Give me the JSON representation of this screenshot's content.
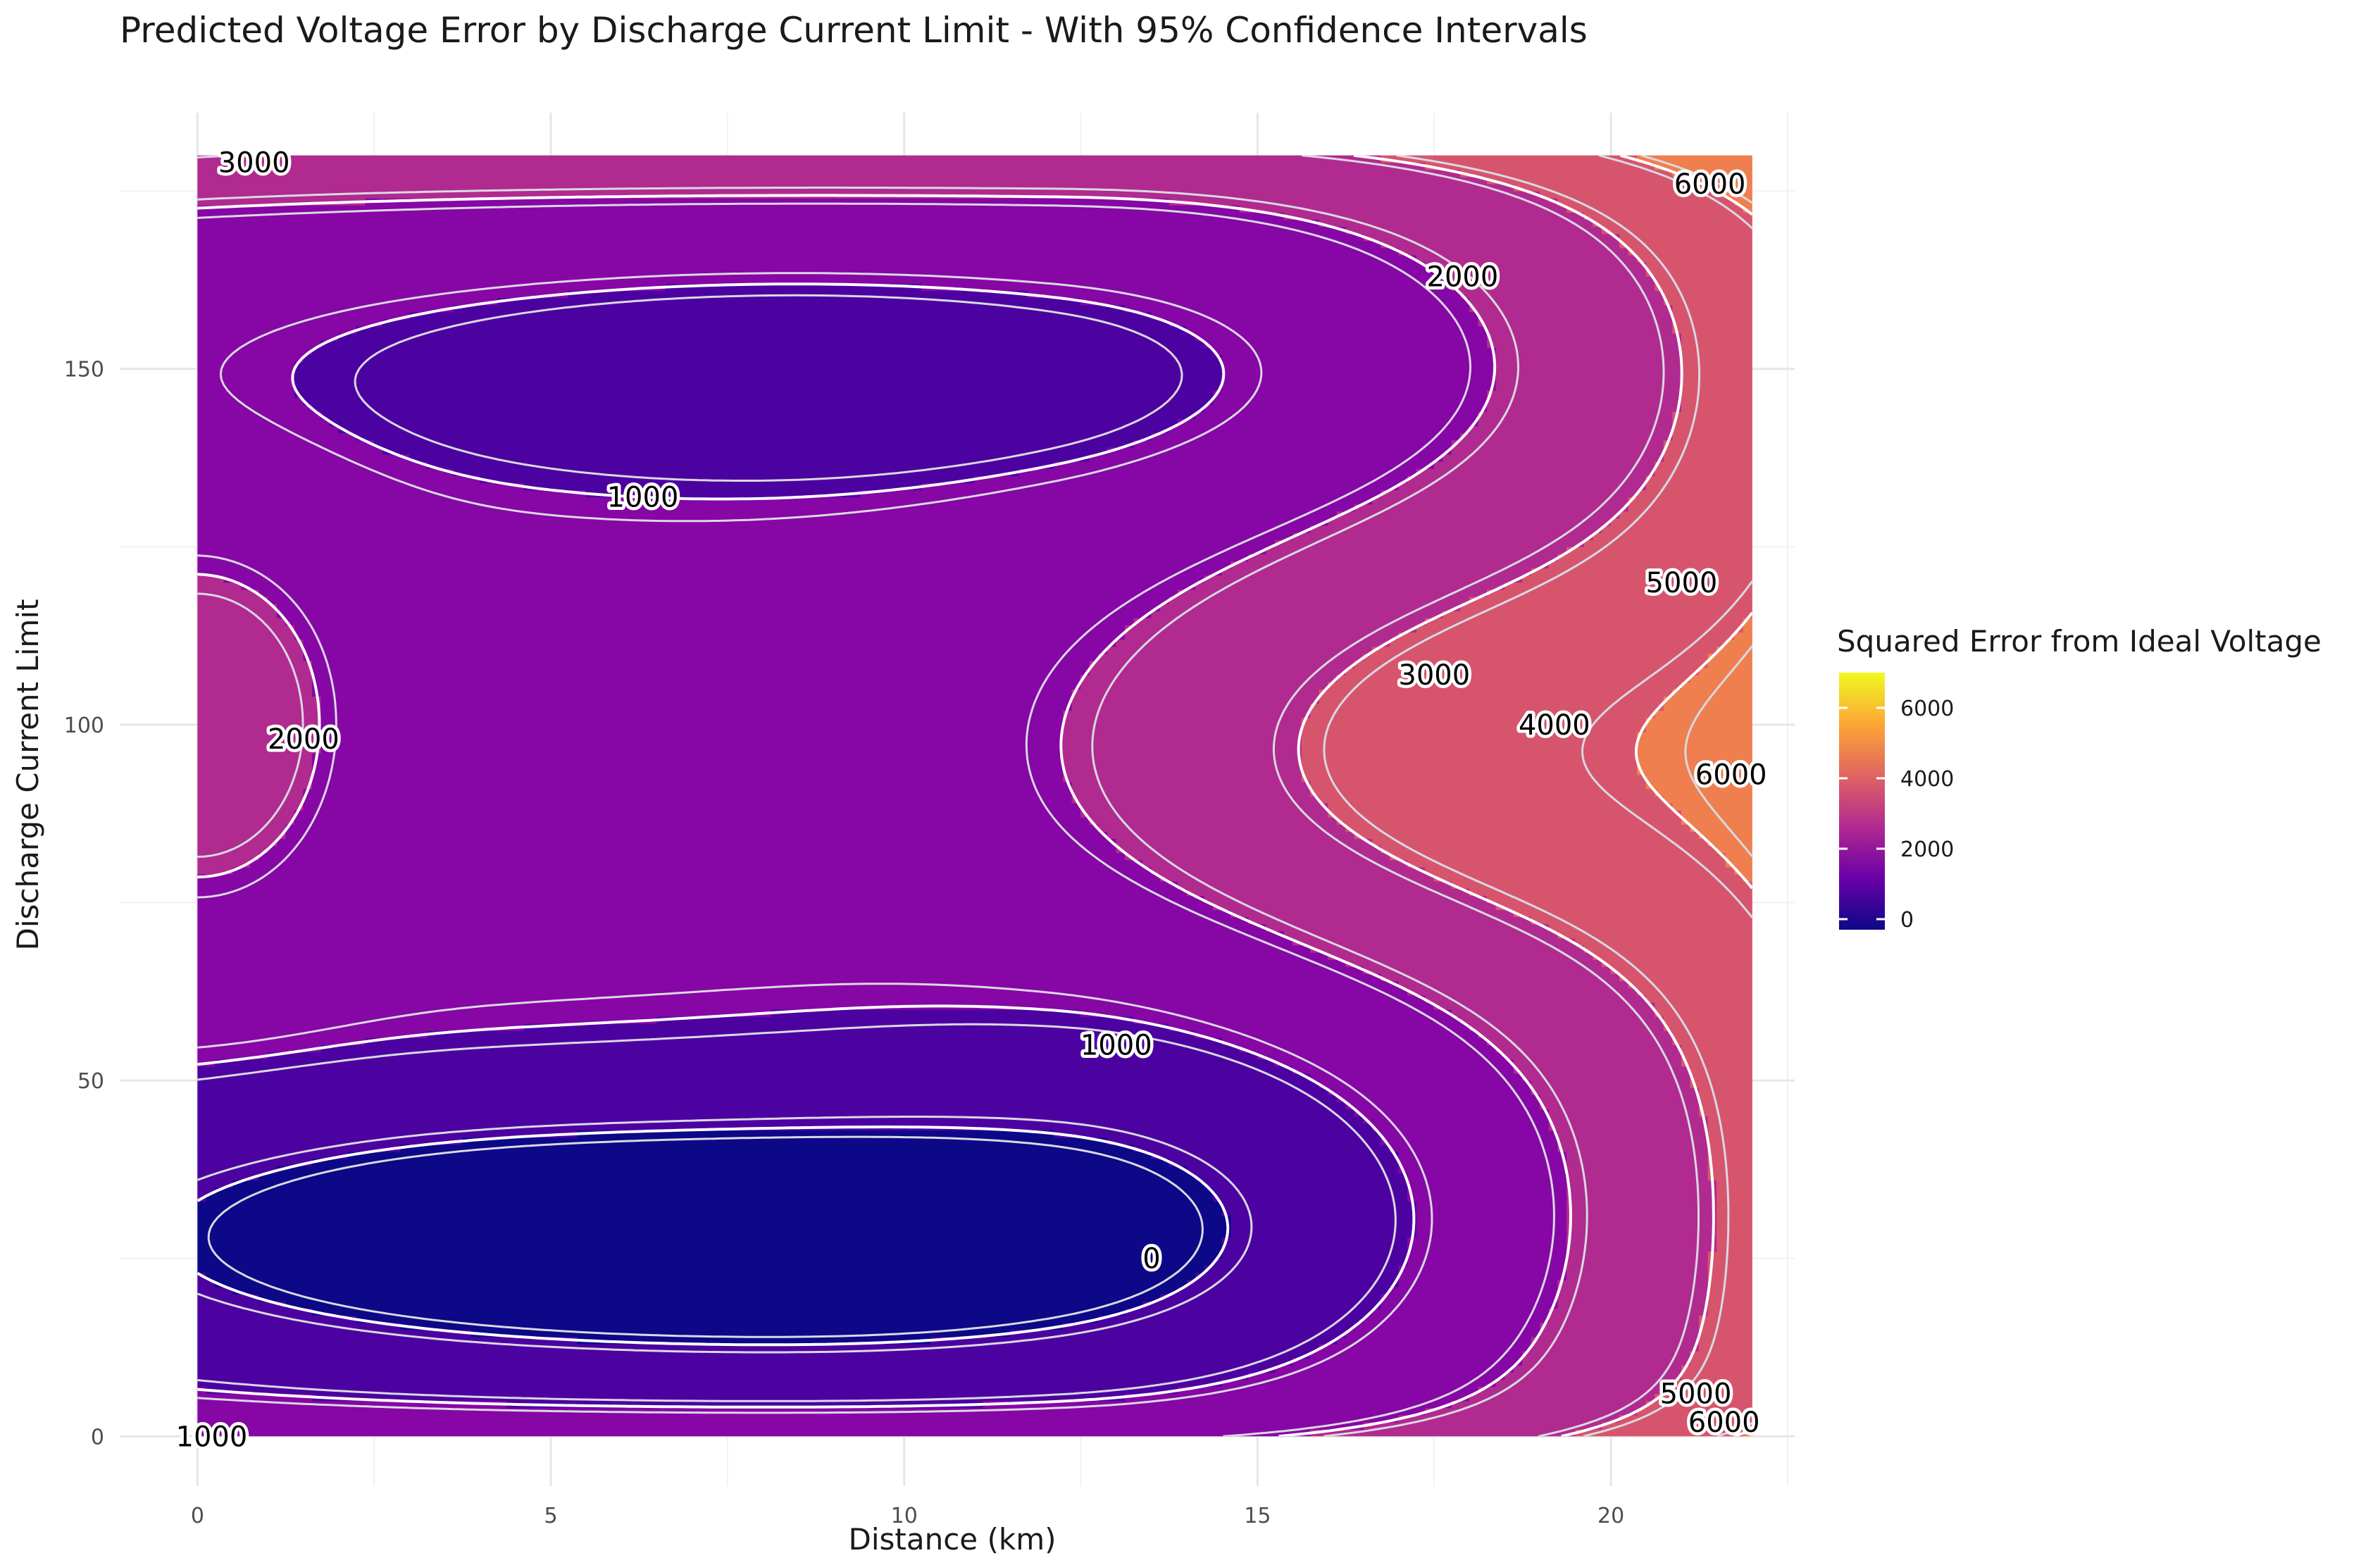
{
  "chart_data": {
    "type": "contour",
    "title": "Predicted Voltage Error by Discharge Current Limit - With 95% Confidence Intervals",
    "xlabel": "Distance (km)",
    "ylabel": "Discharge Current Limit",
    "xlim": [
      -1.1,
      22.6
    ],
    "ylim": [
      -7,
      186
    ],
    "x_ticks": [
      0,
      5,
      10,
      15,
      20
    ],
    "x_tick_labels": [
      "0",
      "5",
      "10",
      "15",
      "20"
    ],
    "y_ticks": [
      0,
      50,
      100,
      150
    ],
    "y_tick_labels": [
      "0",
      "50",
      "100",
      "150"
    ],
    "grid": true,
    "z_legend": {
      "title": "Squared Error from Ideal Voltage",
      "position": "right",
      "ticks": [
        0,
        2000,
        4000,
        6000
      ],
      "tick_labels": [
        "0",
        "2000",
        "4000",
        "6000"
      ],
      "range": [
        -300,
        7000
      ],
      "colors": [
        "#0d0887",
        "#6a00a8",
        "#b12a90",
        "#e16462",
        "#fca636",
        "#f0f921"
      ]
    },
    "fill_bands": [
      {
        "from": -1000,
        "to": 0,
        "color": "#0d0887"
      },
      {
        "from": 0,
        "to": 1000,
        "color": "#4c02a1"
      },
      {
        "from": 1000,
        "to": 2000,
        "color": "#8606a6"
      },
      {
        "from": 2000,
        "to": 3000,
        "color": "#b12a90"
      },
      {
        "from": 3000,
        "to": 4000,
        "color": "#d6556d"
      },
      {
        "from": 4000,
        "to": 5000,
        "color": "#ef7f4f"
      },
      {
        "from": 5000,
        "to": 6000,
        "color": "#fdac33"
      },
      {
        "from": 6000,
        "to": 7000,
        "color": "#f7e225"
      }
    ],
    "contour_levels": [
      0,
      1000,
      2000,
      3000,
      4000,
      5000,
      6000
    ],
    "contour_labels": [
      {
        "text": "3000",
        "x": 0.8,
        "y": 179
      },
      {
        "text": "6000",
        "x": 21.4,
        "y": 176
      },
      {
        "text": "2000",
        "x": 17.9,
        "y": 163
      },
      {
        "text": "1000",
        "x": 6.3,
        "y": 132
      },
      {
        "text": "5000",
        "x": 21.0,
        "y": 120
      },
      {
        "text": "3000",
        "x": 17.5,
        "y": 107
      },
      {
        "text": "2000",
        "x": 1.5,
        "y": 98
      },
      {
        "text": "4000",
        "x": 19.2,
        "y": 100
      },
      {
        "text": "6000",
        "x": 21.7,
        "y": 93
      },
      {
        "text": "1000",
        "x": 13.0,
        "y": 55
      },
      {
        "text": "0",
        "x": 13.5,
        "y": 25
      },
      {
        "text": "1000",
        "x": 0.2,
        "y": 0
      },
      {
        "text": "5000",
        "x": 21.2,
        "y": 6
      },
      {
        "text": "6000",
        "x": 21.6,
        "y": 2
      }
    ]
  }
}
